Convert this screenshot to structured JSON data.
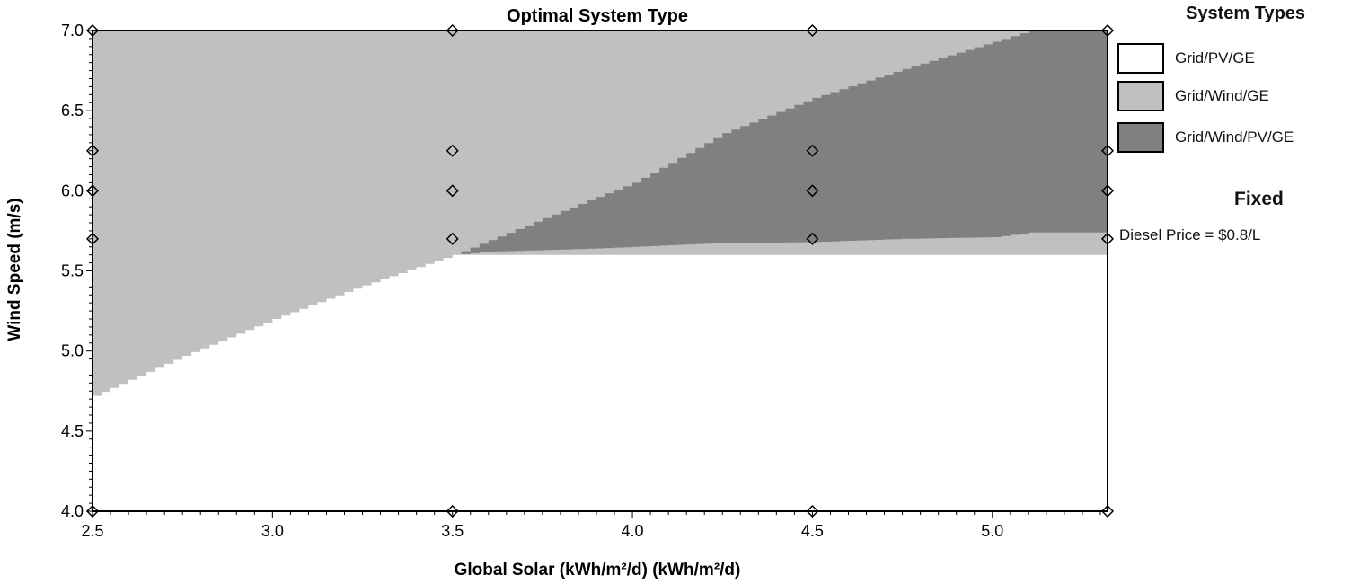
{
  "chart_data": {
    "type": "heatmap",
    "title": "Optimal System Type",
    "xlabel": "Global Solar (kWh/m²/d) (kWh/m²/d)",
    "ylabel": "Wind Speed (m/s)",
    "xlim": [
      2.5,
      5.32
    ],
    "ylim": [
      4.0,
      7.0
    ],
    "xticks": [
      "2.5",
      "3.0",
      "3.5",
      "4.0",
      "4.5",
      "5.0"
    ],
    "xtick_values": [
      2.5,
      3.0,
      3.5,
      4.0,
      4.5,
      5.0
    ],
    "yticks": [
      "4.0",
      "4.5",
      "5.0",
      "5.5",
      "6.0",
      "6.5",
      "7.0"
    ],
    "ytick_values": [
      4.0,
      4.5,
      5.0,
      5.5,
      6.0,
      6.5,
      7.0
    ],
    "series": [
      {
        "name": "Grid/PV/GE",
        "color": "#ffffff"
      },
      {
        "name": "Grid/Wind/GE",
        "color": "#c0c0c0",
        "lower_boundary": {
          "x": [
            2.5,
            2.75,
            3.0,
            3.25,
            3.5,
            5.32
          ],
          "y": [
            4.72,
            4.97,
            5.2,
            5.41,
            5.6,
            5.6
          ]
        }
      },
      {
        "name": "Grid/Wind/PV/GE",
        "color": "#808080",
        "upper_boundary": {
          "x": [
            3.5,
            3.75,
            4.0,
            4.25,
            4.5,
            4.75,
            5.0,
            5.1,
            5.32
          ],
          "y": [
            5.6,
            5.83,
            6.05,
            6.36,
            6.58,
            6.76,
            6.93,
            7.0,
            7.0
          ]
        },
        "lower_boundary": {
          "x": [
            3.5,
            3.6,
            3.9,
            4.2,
            4.5,
            4.75,
            5.0,
            5.1,
            5.32
          ],
          "y": [
            5.6,
            5.62,
            5.64,
            5.67,
            5.68,
            5.7,
            5.71,
            5.74,
            5.74
          ]
        }
      }
    ],
    "markers": {
      "x": [
        2.5,
        2.5,
        2.5,
        2.5,
        2.5,
        3.5,
        3.5,
        3.5,
        3.5,
        3.5,
        4.5,
        4.5,
        4.5,
        4.5,
        4.5,
        5.32,
        5.32,
        5.32,
        5.32,
        5.32
      ],
      "y": [
        4.0,
        5.7,
        6.0,
        6.25,
        7.0,
        4.0,
        5.7,
        6.0,
        6.25,
        7.0,
        4.0,
        5.7,
        6.0,
        6.25,
        7.0,
        4.0,
        5.7,
        6.0,
        6.25,
        7.0
      ]
    },
    "grid": false,
    "legend": {
      "title": "System Types",
      "placement": "right"
    }
  },
  "fixed": {
    "title": "Fixed",
    "text": "Diesel Price = $0.8/L"
  }
}
